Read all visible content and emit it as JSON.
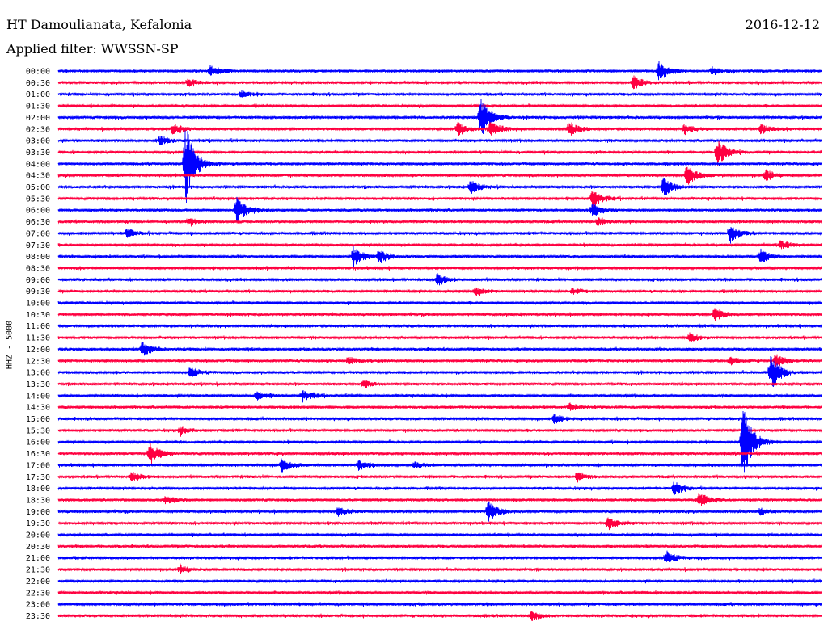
{
  "header": {
    "station": "HT Damoulianata, Kefalonia",
    "date": "2016-12-12",
    "filter": "Applied filter: WWSSN-SP"
  },
  "chart_data": {
    "type": "line",
    "title": "HT Damoulianata, Kefalonia",
    "ylabel": "HHZ - 5000",
    "row_labels": [
      "00:00",
      "00:30",
      "01:00",
      "01:30",
      "02:00",
      "02:30",
      "03:00",
      "03:30",
      "04:00",
      "04:30",
      "05:00",
      "05:30",
      "06:00",
      "06:30",
      "07:00",
      "07:30",
      "08:00",
      "08:30",
      "09:00",
      "09:30",
      "10:00",
      "10:30",
      "11:00",
      "11:30",
      "12:00",
      "12:30",
      "13:00",
      "13:30",
      "14:00",
      "14:30",
      "15:00",
      "15:30",
      "16:00",
      "16:30",
      "17:00",
      "17:30",
      "18:00",
      "18:30",
      "19:00",
      "19:30",
      "20:00",
      "20:30",
      "21:00",
      "21:30",
      "22:00",
      "22:30",
      "23:00",
      "23:30"
    ],
    "trace_colors": [
      "#0000ff",
      "#ff0040"
    ],
    "xlim_minutes": [
      0,
      30
    ],
    "grid": false,
    "events": [
      {
        "row": "00:00",
        "minute": 6.0,
        "amp": 0.5
      },
      {
        "row": "00:00",
        "minute": 23.6,
        "amp": 0.9
      },
      {
        "row": "00:00",
        "minute": 25.7,
        "amp": 0.35
      },
      {
        "row": "00:30",
        "minute": 5.1,
        "amp": 0.35
      },
      {
        "row": "00:30",
        "minute": 22.6,
        "amp": 0.6
      },
      {
        "row": "01:00",
        "minute": 7.2,
        "amp": 0.3
      },
      {
        "row": "02:00",
        "minute": 16.6,
        "amp": 1.8
      },
      {
        "row": "02:30",
        "minute": 4.5,
        "amp": 0.5
      },
      {
        "row": "02:30",
        "minute": 15.7,
        "amp": 0.6
      },
      {
        "row": "02:30",
        "minute": 17.0,
        "amp": 0.7
      },
      {
        "row": "02:30",
        "minute": 20.1,
        "amp": 0.6
      },
      {
        "row": "02:30",
        "minute": 24.6,
        "amp": 0.4
      },
      {
        "row": "02:30",
        "minute": 27.6,
        "amp": 0.4
      },
      {
        "row": "03:00",
        "minute": 4.0,
        "amp": 0.4
      },
      {
        "row": "03:30",
        "minute": 25.9,
        "amp": 1.2
      },
      {
        "row": "04:00",
        "minute": 5.0,
        "amp": 3.6
      },
      {
        "row": "04:30",
        "minute": 24.7,
        "amp": 0.9
      },
      {
        "row": "04:30",
        "minute": 27.8,
        "amp": 0.5
      },
      {
        "row": "05:00",
        "minute": 16.2,
        "amp": 0.6
      },
      {
        "row": "05:00",
        "minute": 23.8,
        "amp": 0.9
      },
      {
        "row": "05:30",
        "minute": 21.0,
        "amp": 0.8
      },
      {
        "row": "06:00",
        "minute": 7.0,
        "amp": 1.2
      },
      {
        "row": "06:00",
        "minute": 21.0,
        "amp": 0.6
      },
      {
        "row": "06:30",
        "minute": 5.1,
        "amp": 0.3
      },
      {
        "row": "06:30",
        "minute": 21.2,
        "amp": 0.3
      },
      {
        "row": "07:00",
        "minute": 2.7,
        "amp": 0.4
      },
      {
        "row": "07:00",
        "minute": 26.4,
        "amp": 0.8
      },
      {
        "row": "07:30",
        "minute": 28.4,
        "amp": 0.4
      },
      {
        "row": "08:00",
        "minute": 11.6,
        "amp": 0.9
      },
      {
        "row": "08:00",
        "minute": 12.6,
        "amp": 0.6
      },
      {
        "row": "08:00",
        "minute": 27.6,
        "amp": 0.6
      },
      {
        "row": "09:00",
        "minute": 14.9,
        "amp": 0.5
      },
      {
        "row": "09:30",
        "minute": 16.4,
        "amp": 0.35
      },
      {
        "row": "09:30",
        "minute": 20.2,
        "amp": 0.3
      },
      {
        "row": "10:30",
        "minute": 25.8,
        "amp": 0.6
      },
      {
        "row": "11:30",
        "minute": 24.8,
        "amp": 0.4
      },
      {
        "row": "12:00",
        "minute": 3.3,
        "amp": 0.6
      },
      {
        "row": "12:30",
        "minute": 11.4,
        "amp": 0.35
      },
      {
        "row": "12:30",
        "minute": 26.4,
        "amp": 0.35
      },
      {
        "row": "12:30",
        "minute": 28.2,
        "amp": 0.6
      },
      {
        "row": "13:00",
        "minute": 5.2,
        "amp": 0.5
      },
      {
        "row": "13:00",
        "minute": 28.0,
        "amp": 1.6
      },
      {
        "row": "13:30",
        "minute": 12.0,
        "amp": 0.35
      },
      {
        "row": "14:00",
        "minute": 7.8,
        "amp": 0.4
      },
      {
        "row": "14:00",
        "minute": 9.6,
        "amp": 0.5
      },
      {
        "row": "14:30",
        "minute": 20.1,
        "amp": 0.3
      },
      {
        "row": "15:00",
        "minute": 19.5,
        "amp": 0.4
      },
      {
        "row": "15:30",
        "minute": 4.8,
        "amp": 0.35
      },
      {
        "row": "16:00",
        "minute": 26.9,
        "amp": 3.5
      },
      {
        "row": "16:30",
        "minute": 3.6,
        "amp": 1.0
      },
      {
        "row": "17:00",
        "minute": 8.8,
        "amp": 0.6
      },
      {
        "row": "17:00",
        "minute": 11.8,
        "amp": 0.4
      },
      {
        "row": "17:00",
        "minute": 14.0,
        "amp": 0.3
      },
      {
        "row": "17:30",
        "minute": 2.9,
        "amp": 0.4
      },
      {
        "row": "17:30",
        "minute": 20.4,
        "amp": 0.4
      },
      {
        "row": "18:00",
        "minute": 24.2,
        "amp": 0.6
      },
      {
        "row": "18:30",
        "minute": 4.2,
        "amp": 0.3
      },
      {
        "row": "18:30",
        "minute": 25.2,
        "amp": 0.6
      },
      {
        "row": "19:00",
        "minute": 11.0,
        "amp": 0.4
      },
      {
        "row": "19:00",
        "minute": 16.9,
        "amp": 0.9
      },
      {
        "row": "19:00",
        "minute": 27.6,
        "amp": 0.3
      },
      {
        "row": "19:30",
        "minute": 21.6,
        "amp": 0.6
      },
      {
        "row": "21:00",
        "minute": 23.9,
        "amp": 0.6
      },
      {
        "row": "21:30",
        "minute": 4.8,
        "amp": 0.4
      },
      {
        "row": "23:30",
        "minute": 18.6,
        "amp": 0.4
      }
    ]
  }
}
